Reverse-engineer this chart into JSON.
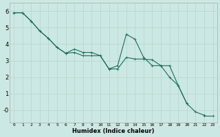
{
  "xlabel": "Humidex (Indice chaleur)",
  "background_color": "#cce8e4",
  "grid_color": "#b8d8d0",
  "line_color": "#1a6b5a",
  "x": [
    0,
    1,
    2,
    3,
    4,
    5,
    6,
    7,
    8,
    9,
    10,
    11,
    12,
    13,
    14,
    15,
    16,
    17,
    18,
    19,
    20,
    21,
    22,
    23
  ],
  "line1": [
    5.9,
    5.9,
    5.4,
    4.8,
    4.35,
    3.8,
    3.45,
    3.5,
    3.3,
    3.3,
    3.3,
    2.5,
    2.5,
    3.2,
    3.1,
    3.1,
    null,
    null,
    null,
    null,
    null,
    null,
    null,
    null
  ],
  "line2": [
    5.9,
    5.9,
    5.4,
    4.8,
    4.35,
    3.8,
    3.45,
    3.7,
    3.5,
    3.5,
    3.3,
    2.5,
    2.7,
    4.6,
    4.3,
    3.2,
    2.7,
    2.7,
    2.7,
    1.5,
    0.4,
    -0.1,
    -0.3,
    null
  ],
  "line3": [
    5.9,
    null,
    null,
    null,
    null,
    null,
    null,
    null,
    null,
    null,
    null,
    null,
    null,
    null,
    null,
    3.1,
    3.05,
    2.7,
    2.0,
    1.5,
    0.4,
    null,
    -0.35,
    -0.35
  ],
  "xlim": [
    -0.5,
    23.5
  ],
  "ylim": [
    -0.75,
    6.5
  ],
  "yticks": [
    0,
    1,
    2,
    3,
    4,
    5,
    6
  ],
  "ytick_labels": [
    "-0",
    "1",
    "2",
    "3",
    "4",
    "5",
    "6"
  ],
  "xticks": [
    0,
    1,
    2,
    3,
    4,
    5,
    6,
    7,
    8,
    9,
    10,
    11,
    12,
    13,
    14,
    15,
    16,
    17,
    18,
    19,
    20,
    21,
    22,
    23
  ]
}
